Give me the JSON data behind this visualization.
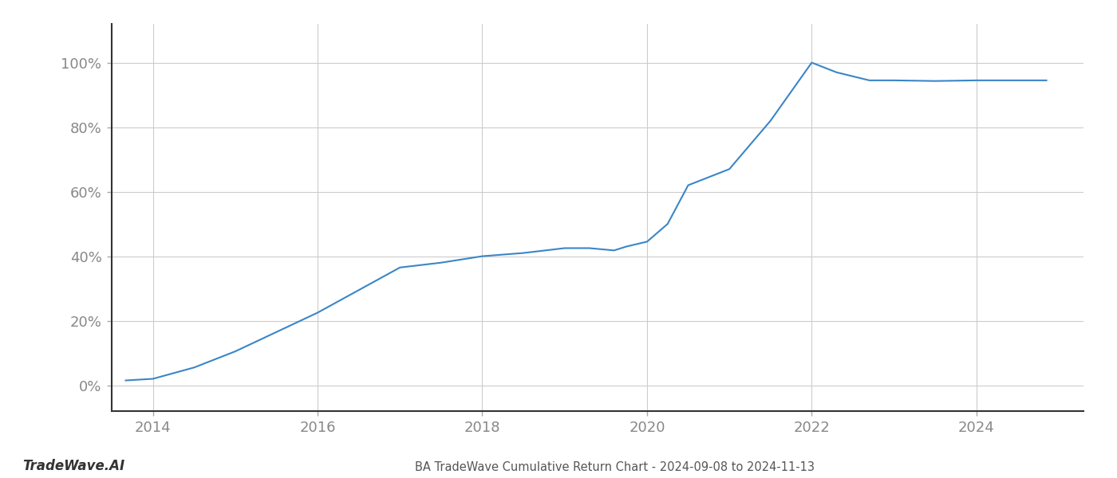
{
  "x": [
    2013.67,
    2014.0,
    2014.5,
    2015.0,
    2015.5,
    2016.0,
    2016.5,
    2017.0,
    2017.5,
    2018.0,
    2018.5,
    2019.0,
    2019.3,
    2019.6,
    2019.75,
    2020.0,
    2020.25,
    2020.5,
    2021.0,
    2021.5,
    2022.0,
    2022.3,
    2022.7,
    2023.0,
    2023.5,
    2024.0,
    2024.5,
    2024.85
  ],
  "y": [
    1.5,
    2.0,
    5.5,
    10.5,
    16.5,
    22.5,
    29.5,
    36.5,
    38.0,
    40.0,
    41.0,
    42.5,
    42.5,
    41.8,
    43.0,
    44.5,
    50.0,
    62.0,
    67.0,
    82.0,
    100.0,
    97.0,
    94.5,
    94.5,
    94.3,
    94.5,
    94.5,
    94.5
  ],
  "line_color": "#3a86c8",
  "line_width": 1.5,
  "title": "BA TradeWave Cumulative Return Chart - 2024-09-08 to 2024-11-13",
  "watermark": "TradeWave.AI",
  "background_color": "#ffffff",
  "grid_color": "#cccccc",
  "xlim": [
    2013.5,
    2025.3
  ],
  "ylim": [
    -8,
    112
  ],
  "xticks": [
    2014,
    2016,
    2018,
    2020,
    2022,
    2024
  ],
  "yticks": [
    0,
    20,
    40,
    60,
    80,
    100
  ],
  "title_fontsize": 10.5,
  "tick_fontsize": 13,
  "watermark_fontsize": 12
}
